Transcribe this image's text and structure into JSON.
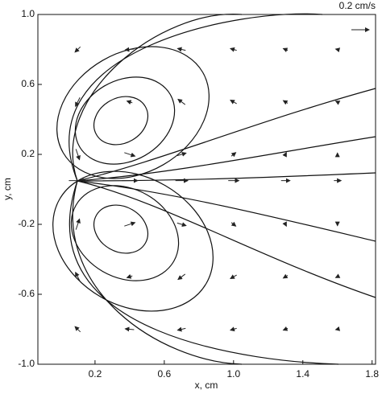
{
  "chart_data": {
    "type": "quiver",
    "xlabel": "x, cm",
    "ylabel": "y, cm",
    "xlim": [
      -0.13,
      1.82
    ],
    "ylim": [
      -1,
      1
    ],
    "xticks": [
      0.2,
      0.6,
      {
        "value": 1,
        "label": "1.0"
      },
      1.4,
      1.8
    ],
    "yticks": [
      {
        "value": -1,
        "label": "-1.0"
      },
      -0.6,
      -0.2,
      0.2,
      0.6,
      {
        "value": 1,
        "label": "1.0"
      }
    ],
    "reference": {
      "value": 0.2,
      "label": "0.2 cm/s"
    },
    "color": "#222222",
    "vectors": {
      "x": [
        0.1,
        0.4,
        0.7,
        1.0,
        1.3,
        1.6,
        0.1,
        0.4,
        0.7,
        1.0,
        1.3,
        1.6,
        0.1,
        0.4,
        0.7,
        1.0,
        1.3,
        1.6,
        0.1,
        0.4,
        0.7,
        1.0,
        1.3,
        1.6,
        0.1,
        0.4,
        0.7,
        1.0,
        1.3,
        1.6,
        0.1,
        0.4,
        0.7,
        1.0,
        1.3,
        1.6,
        0.1,
        0.4,
        0.7,
        1.0,
        1.3,
        1.6
      ],
      "y": [
        0.8,
        0.8,
        0.8,
        0.8,
        0.8,
        0.8,
        0.5,
        0.5,
        0.5,
        0.5,
        0.5,
        0.5,
        0.2,
        0.2,
        0.2,
        0.2,
        0.2,
        0.2,
        0.05,
        0.05,
        0.05,
        0.05,
        0.05,
        0.05,
        -0.2,
        -0.2,
        -0.2,
        -0.2,
        -0.2,
        -0.2,
        -0.5,
        -0.5,
        -0.5,
        -0.5,
        -0.5,
        -0.5,
        -0.8,
        -0.8,
        -0.8,
        -0.8,
        -0.8,
        -0.8
      ],
      "u": [
        -0.06,
        -0.1,
        -0.09,
        -0.07,
        -0.05,
        -0.04,
        -0.05,
        -0.06,
        -0.08,
        -0.07,
        -0.05,
        -0.04,
        0.04,
        0.12,
        0.1,
        0.05,
        0.02,
        0.0,
        0.2,
        0.18,
        0.14,
        0.12,
        0.1,
        0.08,
        0.04,
        0.12,
        0.1,
        0.05,
        0.02,
        0.0,
        -0.05,
        -0.06,
        -0.08,
        -0.07,
        -0.05,
        -0.04,
        -0.06,
        -0.1,
        -0.09,
        -0.07,
        -0.05,
        -0.04
      ],
      "v": [
        -0.06,
        -0.01,
        0.02,
        0.02,
        0.02,
        0.01,
        -0.1,
        0.02,
        0.06,
        0.04,
        0.03,
        0.02,
        -0.12,
        -0.04,
        0.03,
        0.04,
        0.04,
        0.03,
        0,
        0,
        0,
        0,
        0,
        0,
        0.12,
        0.04,
        -0.03,
        -0.04,
        -0.04,
        -0.03,
        0.1,
        -0.02,
        -0.06,
        -0.04,
        -0.03,
        -0.02,
        0.06,
        0.01,
        -0.02,
        -0.02,
        -0.02,
        -0.01
      ]
    }
  }
}
